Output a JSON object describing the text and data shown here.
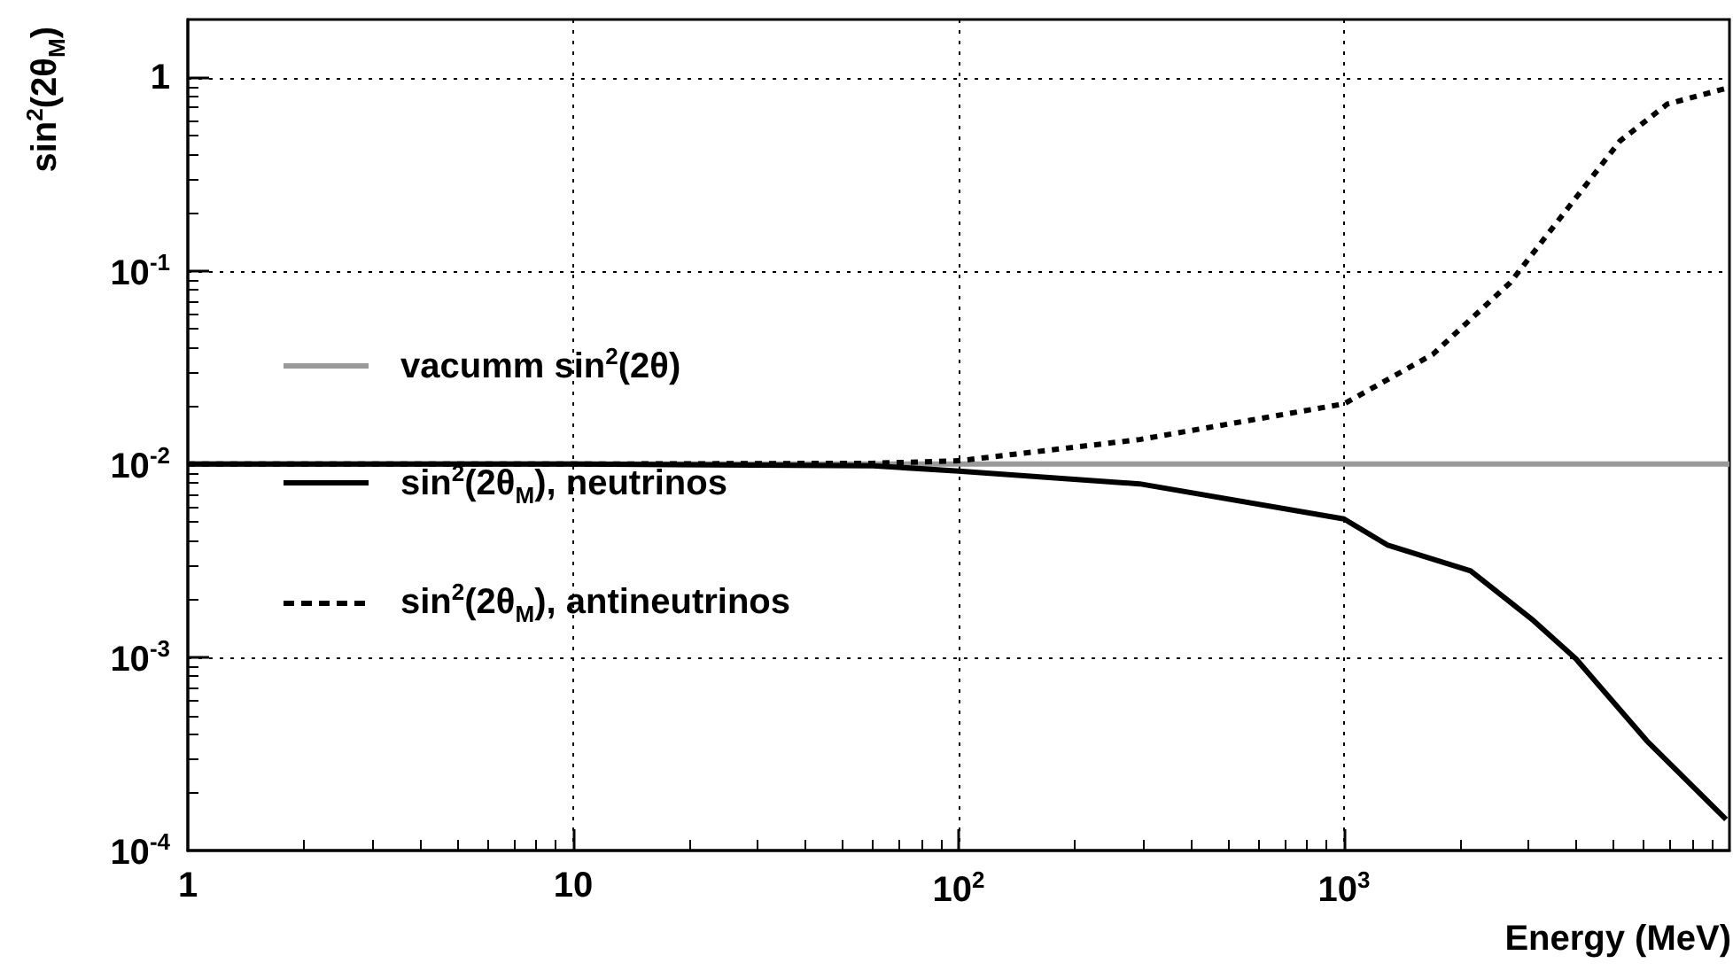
{
  "chart_data": {
    "type": "line",
    "xlabel": "Energy (MeV)",
    "ylabel": "sin$^{2}$(2θ$_{M}$)",
    "log": "xy",
    "grid": true,
    "legend": "left",
    "marker": "none",
    "xlim": [
      1,
      10000
    ],
    "ylim": [
      0.0001,
      2
    ],
    "xticks": [
      1,
      10,
      {
        "value": 100,
        "label": "10$^{2}$"
      },
      {
        "value": 1000,
        "label": "10$^{3}$"
      }
    ],
    "yticks": [
      {
        "value": 0.0001,
        "label": "10$^{-4}$"
      },
      {
        "value": 0.001,
        "label": "10$^{-3}$"
      },
      {
        "value": 0.01,
        "label": "10$^{-2}$"
      },
      {
        "value": 0.1,
        "label": "10$^{-1}$"
      },
      1
    ],
    "series": [
      {
        "name": "vacumm sin$^{2}$(2θ)",
        "color": "#999999",
        "line_style": "solid",
        "x": [
          1,
          10000
        ],
        "values": [
          0.01,
          0.01
        ]
      },
      {
        "name": "sin$^{2}$(2θ$_{M}$), neutrinos",
        "color": "#000000",
        "line_style": "solid",
        "x": [
          1,
          10,
          60,
          100,
          295,
          1000,
          1300,
          2130,
          3100,
          4000,
          6100,
          9800
        ],
        "values": [
          0.01,
          0.01,
          0.0098,
          0.0092,
          0.0079,
          0.0052,
          0.0038,
          0.0028,
          0.00155,
          0.00098,
          0.00037,
          0.000145
        ]
      },
      {
        "name": "sin$^{2}$(2θ$_{M}$), antineutrinos",
        "color": "#000000",
        "line_style": "dashed",
        "x": [
          1,
          10,
          60,
          100,
          295,
          1000,
          1700,
          2700,
          3800,
          5200,
          6900,
          9800
        ],
        "values": [
          0.01,
          0.01,
          0.0101,
          0.0104,
          0.0134,
          0.0205,
          0.037,
          0.087,
          0.21,
          0.47,
          0.73,
          0.88
        ]
      }
    ]
  }
}
